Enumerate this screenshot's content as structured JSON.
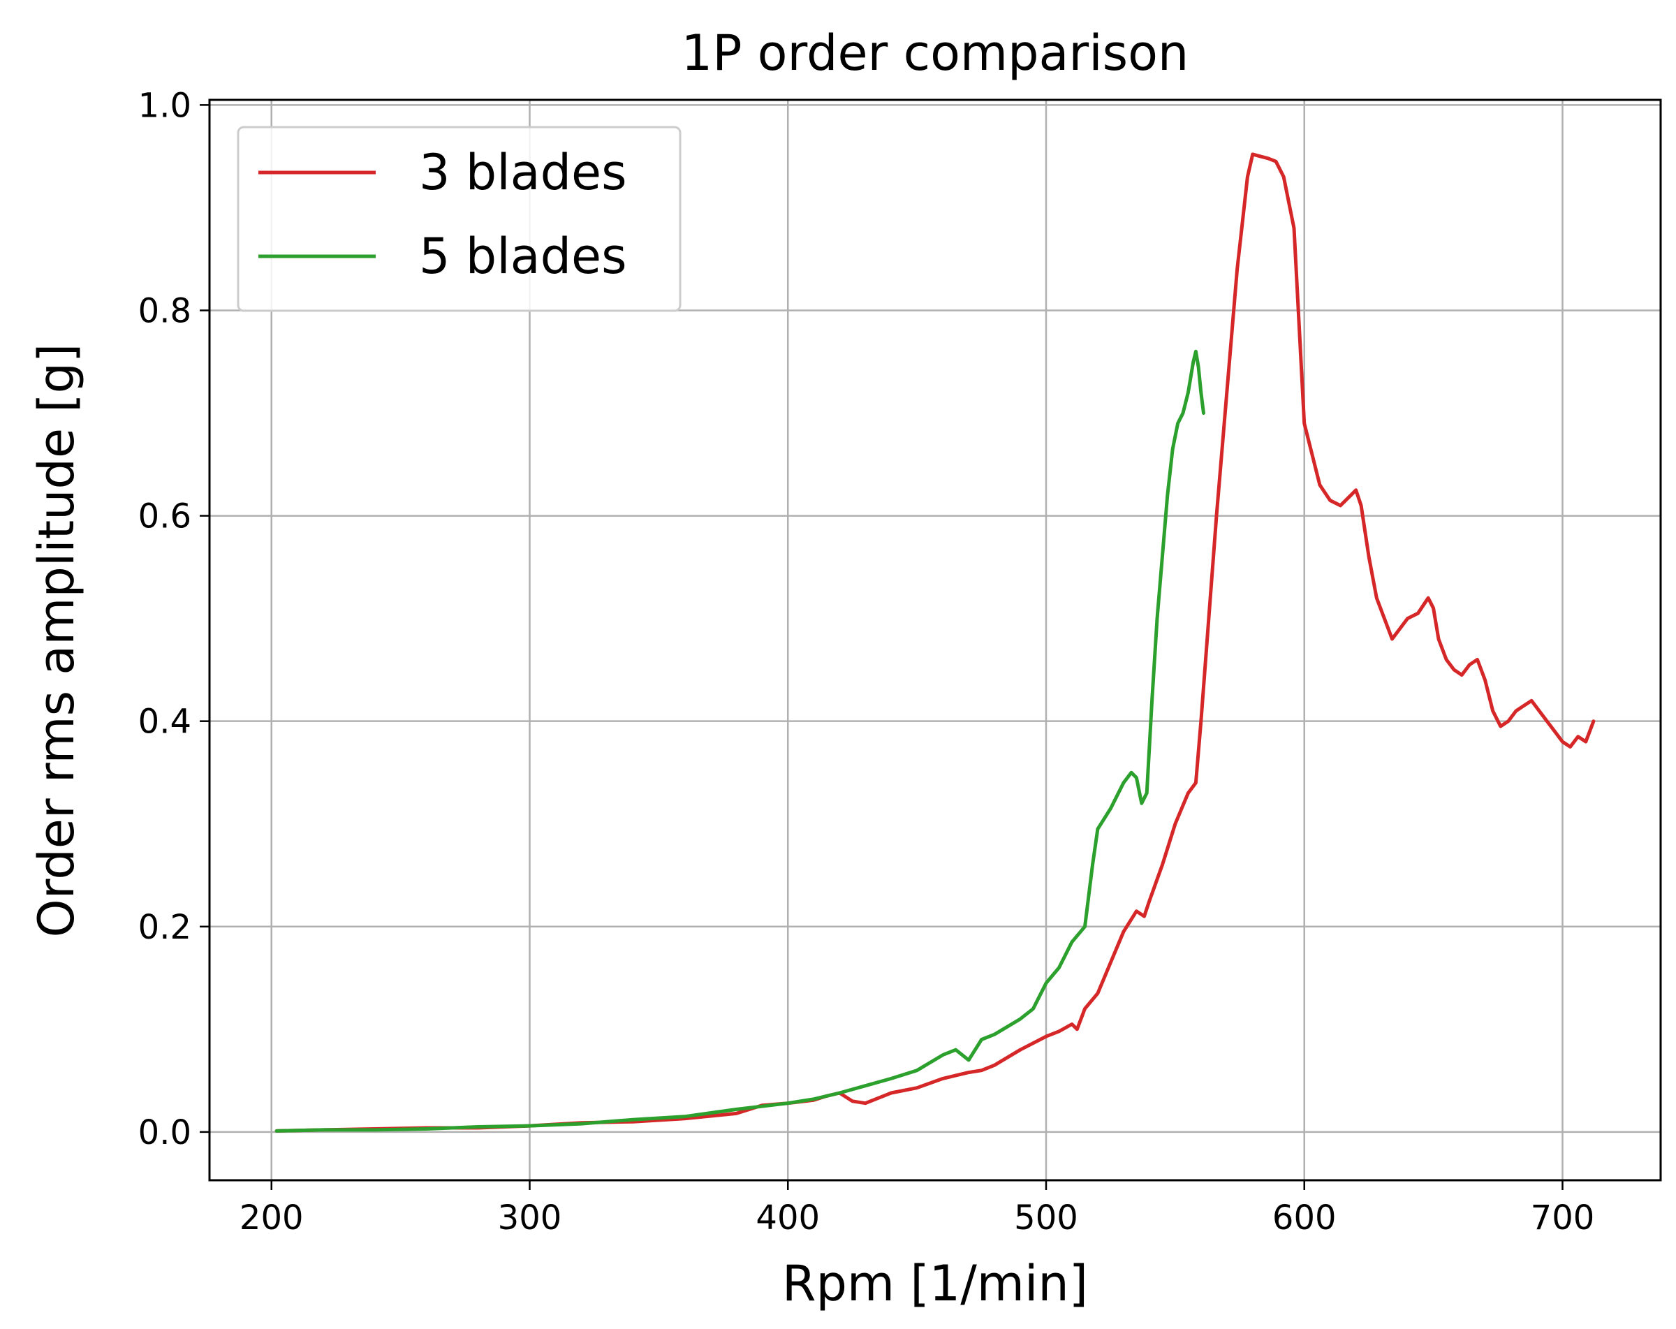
{
  "chart_data": {
    "type": "line",
    "title": "1P order comparison",
    "xlabel": "Rpm [1/min]",
    "ylabel": "Order rms amplitude [g]",
    "xlim": [
      176,
      738
    ],
    "ylim": [
      -0.047,
      1.005
    ],
    "grid": true,
    "legend_position": "top-left",
    "xticks": [
      {
        "value": 200,
        "label": "200"
      },
      {
        "value": 300,
        "label": "300"
      },
      {
        "value": 400,
        "label": "400"
      },
      {
        "value": 500,
        "label": "500"
      },
      {
        "value": 600,
        "label": "600"
      },
      {
        "value": 700,
        "label": "700"
      }
    ],
    "yticks": [
      {
        "value": 0.0,
        "label": "0.0"
      },
      {
        "value": 0.2,
        "label": "0.2"
      },
      {
        "value": 0.4,
        "label": "0.4"
      },
      {
        "value": 0.6,
        "label": "0.6"
      },
      {
        "value": 0.8,
        "label": "0.8"
      },
      {
        "value": 1.0,
        "label": "1.0"
      }
    ],
    "series": [
      {
        "name": "3 blades",
        "color": "#d62728",
        "x": [
          202,
          220,
          240,
          260,
          280,
          300,
          320,
          340,
          360,
          380,
          390,
          400,
          410,
          415,
          420,
          425,
          430,
          440,
          450,
          460,
          470,
          475,
          480,
          490,
          500,
          505,
          510,
          512,
          515,
          520,
          525,
          530,
          535,
          538,
          540,
          545,
          550,
          555,
          558,
          560,
          563,
          566,
          570,
          574,
          578,
          580,
          583,
          586,
          589,
          592,
          596,
          600,
          603,
          606,
          610,
          614,
          618,
          620,
          622,
          625,
          628,
          631,
          634,
          637,
          640,
          644,
          648,
          650,
          652,
          655,
          658,
          661,
          664,
          667,
          670,
          673,
          676,
          679,
          682,
          685,
          688,
          691,
          694,
          697,
          700,
          703,
          706,
          709,
          712
        ],
        "y": [
          0.001,
          0.002,
          0.003,
          0.004,
          0.004,
          0.006,
          0.009,
          0.01,
          0.013,
          0.018,
          0.026,
          0.028,
          0.031,
          0.035,
          0.038,
          0.03,
          0.028,
          0.038,
          0.043,
          0.052,
          0.058,
          0.06,
          0.065,
          0.08,
          0.093,
          0.098,
          0.105,
          0.1,
          0.12,
          0.135,
          0.165,
          0.195,
          0.215,
          0.21,
          0.225,
          0.26,
          0.3,
          0.33,
          0.34,
          0.4,
          0.5,
          0.6,
          0.72,
          0.84,
          0.93,
          0.952,
          0.95,
          0.948,
          0.945,
          0.93,
          0.88,
          0.69,
          0.66,
          0.63,
          0.615,
          0.61,
          0.62,
          0.625,
          0.61,
          0.56,
          0.52,
          0.5,
          0.48,
          0.49,
          0.5,
          0.505,
          0.52,
          0.51,
          0.48,
          0.46,
          0.45,
          0.445,
          0.455,
          0.46,
          0.44,
          0.41,
          0.395,
          0.4,
          0.41,
          0.415,
          0.42,
          0.41,
          0.4,
          0.39,
          0.38,
          0.375,
          0.385,
          0.38,
          0.4
        ]
      },
      {
        "name": "5 blades",
        "color": "#2ca02c",
        "x": [
          202,
          220,
          240,
          260,
          280,
          300,
          320,
          340,
          360,
          380,
          400,
          410,
          420,
          430,
          440,
          450,
          460,
          465,
          470,
          475,
          480,
          490,
          495,
          500,
          505,
          510,
          515,
          518,
          520,
          525,
          530,
          533,
          535,
          537,
          539,
          541,
          543,
          545,
          547,
          549,
          551,
          553,
          555,
          557,
          558,
          559,
          560,
          561
        ],
        "y": [
          0.001,
          0.002,
          0.002,
          0.003,
          0.005,
          0.006,
          0.008,
          0.012,
          0.015,
          0.022,
          0.028,
          0.032,
          0.038,
          0.045,
          0.052,
          0.06,
          0.075,
          0.08,
          0.07,
          0.09,
          0.095,
          0.11,
          0.12,
          0.145,
          0.16,
          0.185,
          0.2,
          0.26,
          0.295,
          0.315,
          0.34,
          0.35,
          0.345,
          0.32,
          0.33,
          0.42,
          0.5,
          0.56,
          0.62,
          0.665,
          0.69,
          0.7,
          0.72,
          0.75,
          0.76,
          0.745,
          0.72,
          0.7
        ]
      }
    ]
  }
}
